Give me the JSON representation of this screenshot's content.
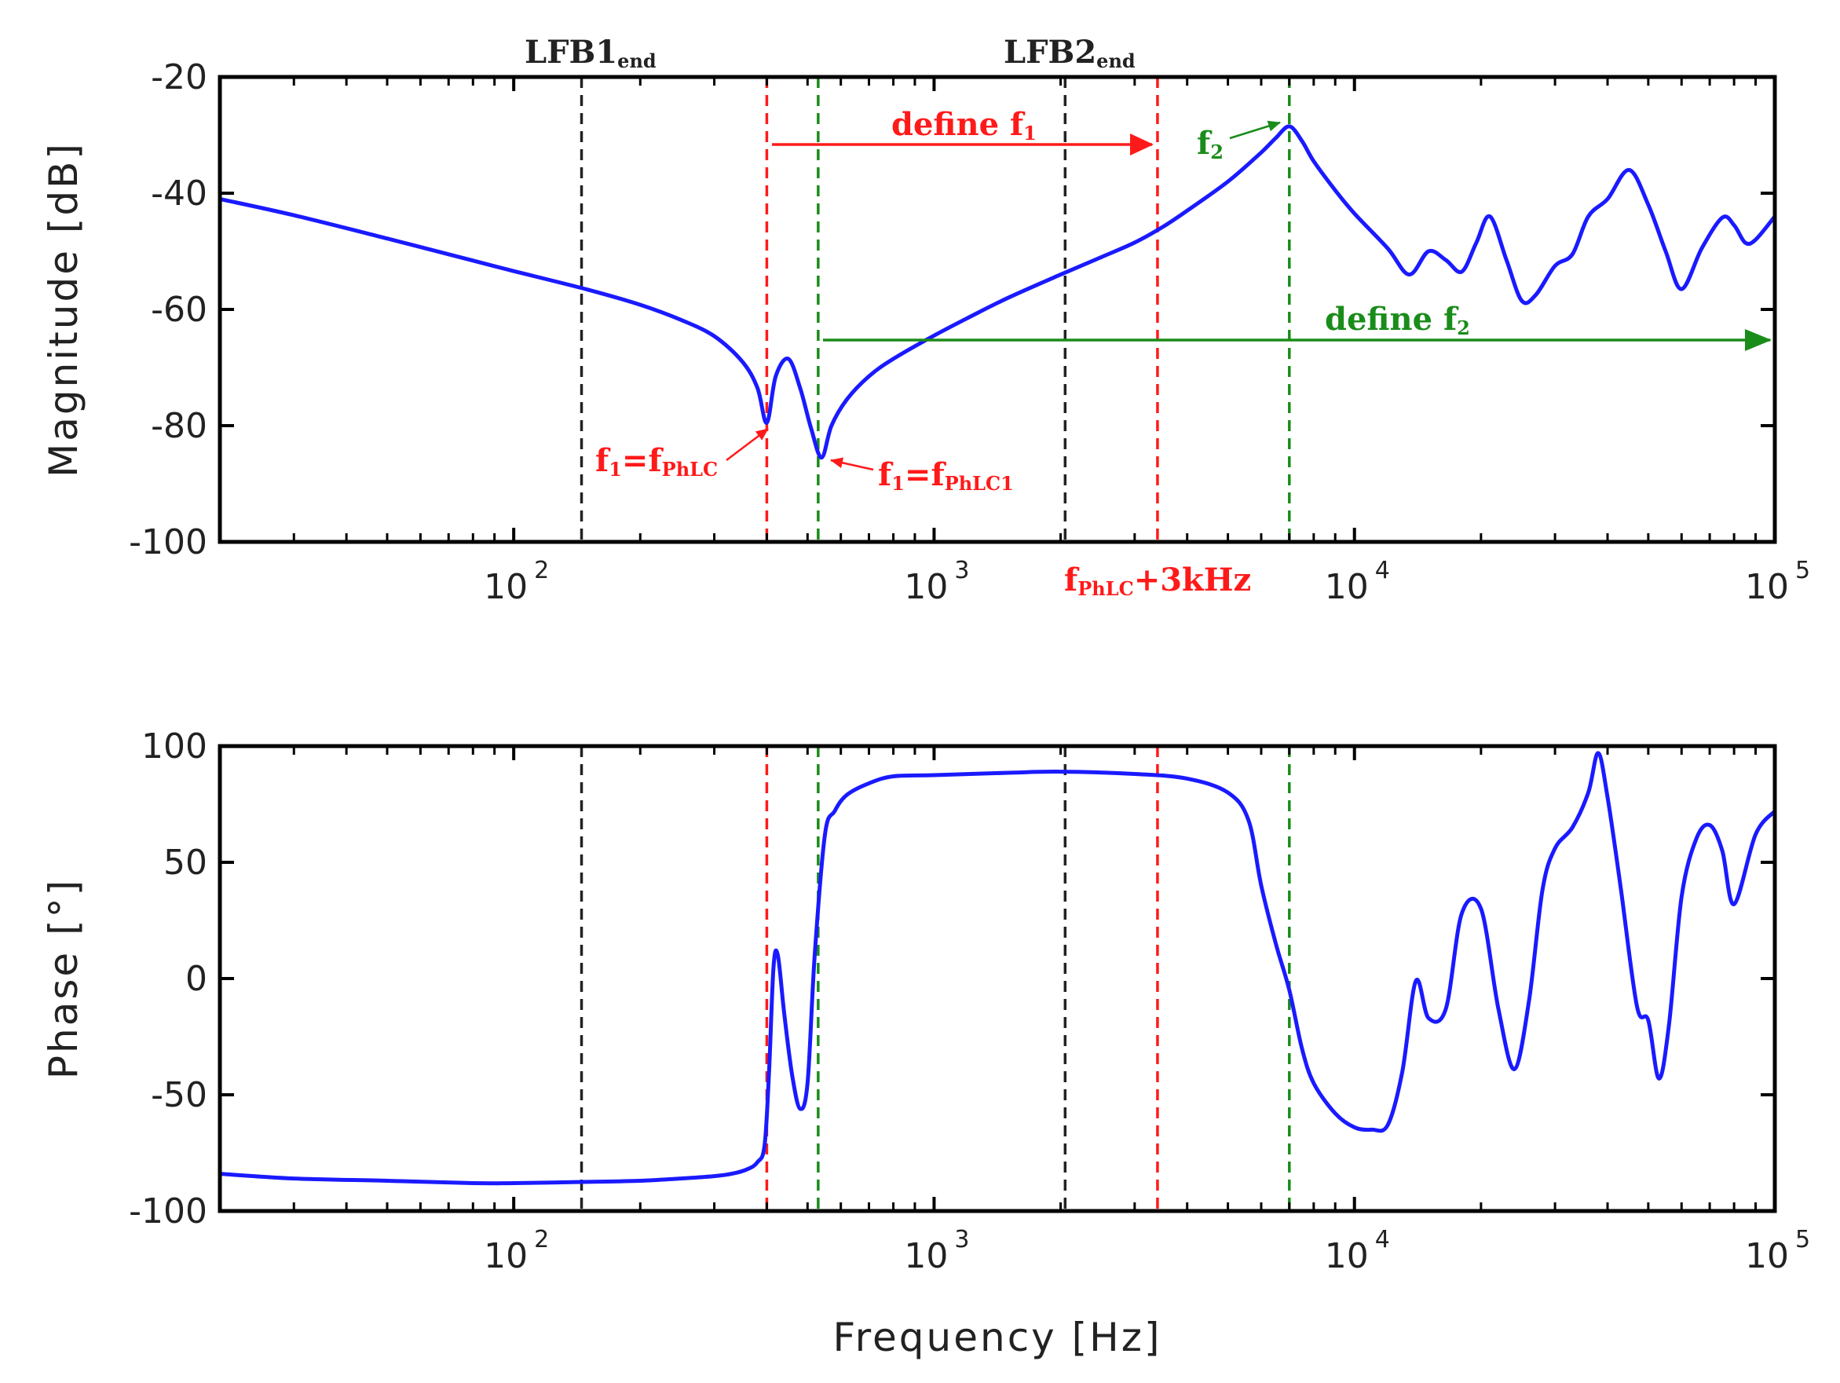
{
  "colors": {
    "series": "#1a1aff",
    "lfb": "#222222",
    "red": "#ff1a1a",
    "green": "#1a8c1a"
  },
  "chart_data": [
    {
      "type": "line",
      "title": "",
      "xlabel": "",
      "ylabel": "Magnitude [dB]",
      "xscale": "log",
      "xlim": [
        20,
        100000
      ],
      "ylim": [
        -100,
        -20
      ],
      "yticks": [
        "-20",
        "-40",
        "-60",
        "-80",
        "-100"
      ],
      "ytick_values": [
        -20,
        -40,
        -60,
        -80,
        -100
      ],
      "xtick_base": "10",
      "xtick_exponents": [
        "2",
        "3",
        "4",
        "5"
      ],
      "grid": false,
      "series": [
        {
          "name": "Magnitude",
          "x": [
            20,
            30,
            50,
            80,
            100,
            150,
            200,
            250,
            300,
            350,
            380,
            400,
            420,
            450,
            480,
            510,
            540,
            570,
            620,
            700,
            800,
            1000,
            1200,
            1500,
            2000,
            2500,
            3000,
            3500,
            4000,
            5000,
            6000,
            6500,
            7000,
            7500,
            8000,
            9000,
            10000,
            12000,
            13500,
            15000,
            16500,
            18000,
            19500,
            21000,
            23000,
            25000,
            27000,
            30000,
            33000,
            36000,
            40000,
            45000,
            50000,
            55000,
            60000,
            67000,
            75000,
            80000,
            85000,
            90000,
            100000
          ],
          "y": [
            -41,
            -43.8,
            -47.8,
            -51.6,
            -53.4,
            -56.6,
            -59.2,
            -61.8,
            -64.6,
            -69,
            -73.5,
            -79.5,
            -71.5,
            -68.5,
            -73.5,
            -80.5,
            -85.5,
            -80,
            -75.5,
            -71.5,
            -68.5,
            -64.5,
            -61.5,
            -58,
            -54,
            -51,
            -48.5,
            -45.8,
            -43,
            -38,
            -33,
            -30.5,
            -28.5,
            -31,
            -34.5,
            -39.5,
            -43.5,
            -49.5,
            -54,
            -50,
            -51.5,
            -53.5,
            -48.5,
            -44,
            -51.5,
            -58.5,
            -57.5,
            -52.5,
            -50.5,
            -44,
            -41,
            -36,
            -42,
            -50,
            -56.5,
            -49.5,
            -44.2,
            -45.5,
            -48.5,
            -48,
            -44
          ]
        }
      ],
      "annotations": [
        {
          "text": "LFB1",
          "sub": "end",
          "x": 145,
          "color": "lfb"
        },
        {
          "text": "LFB2",
          "sub": "end",
          "x": 2050,
          "color": "lfb"
        },
        {
          "text": "define f",
          "sub": "1",
          "color": "red"
        },
        {
          "text": "f",
          "sub": "2",
          "color": "green"
        },
        {
          "text": "define f",
          "sub": "2",
          "color": "green"
        },
        {
          "text": "f",
          "sub": "1",
          "mid": "=f",
          "sub2": "PhLC",
          "color": "red"
        },
        {
          "text": "f",
          "sub": "1",
          "mid": "=f",
          "sub2": "PhLC1",
          "color": "red"
        },
        {
          "text": "f",
          "sub": "PhLC",
          "tail": "+3kHz",
          "color": "red"
        }
      ],
      "vertical_lines": [
        {
          "x": 145,
          "color": "lfb",
          "label": "LFB1 end"
        },
        {
          "x": 400,
          "color": "red",
          "label": "f1 = fPhLC"
        },
        {
          "x": 530,
          "color": "green",
          "label": "f1 = fPhLC1"
        },
        {
          "x": 2050,
          "color": "lfb",
          "label": "LFB2 end"
        },
        {
          "x": 3400,
          "color": "red",
          "label": "fPhLC + 3kHz"
        },
        {
          "x": 7000,
          "color": "green",
          "label": "f2"
        }
      ]
    },
    {
      "type": "line",
      "title": "",
      "xlabel": "Frequency [Hz]",
      "ylabel": "Phase [°]",
      "xscale": "log",
      "xlim": [
        20,
        100000
      ],
      "ylim": [
        -100,
        100
      ],
      "yticks": [
        "100",
        "50",
        "0",
        "-50",
        "-100"
      ],
      "ytick_values": [
        100,
        50,
        0,
        -50,
        -100
      ],
      "xtick_base": "10",
      "xtick_exponents": [
        "2",
        "3",
        "4",
        "5"
      ],
      "grid": false,
      "series": [
        {
          "name": "Phase",
          "x": [
            20,
            30,
            50,
            80,
            100,
            145,
            200,
            250,
            300,
            330,
            360,
            380,
            395,
            405,
            415,
            425,
            440,
            460,
            480,
            500,
            520,
            550,
            580,
            620,
            700,
            800,
            1000,
            1500,
            2000,
            3000,
            4000,
            5000,
            5600,
            6000,
            6500,
            7000,
            7500,
            8000,
            9000,
            10000,
            11000,
            12000,
            13000,
            14000,
            15000,
            16500,
            18000,
            20000,
            22000,
            24000,
            26000,
            28000,
            30000,
            33000,
            36000,
            38000,
            40000,
            43000,
            47000,
            50000,
            53000,
            56000,
            60000,
            65000,
            70000,
            75000,
            80000,
            90000,
            100000
          ],
          "y": [
            -84,
            -86,
            -87,
            -88,
            -88,
            -87.5,
            -87,
            -86,
            -85,
            -84,
            -82,
            -79,
            -72,
            -40,
            5,
            10,
            -15,
            -42,
            -56,
            -45,
            10,
            62,
            72,
            79,
            84,
            87,
            87.5,
            88.5,
            89,
            88,
            86,
            80,
            68,
            40,
            15,
            -5,
            -30,
            -45,
            -58,
            -64,
            -65,
            -63,
            -40,
            -1,
            -17,
            -13,
            28,
            30,
            -13,
            -39,
            -10,
            38,
            56,
            65,
            80,
            97,
            78,
            39,
            -12,
            -18,
            -43,
            -20,
            35,
            60,
            66,
            55,
            32,
            62,
            72
          ]
        }
      ],
      "vertical_lines": [
        {
          "x": 145,
          "color": "lfb"
        },
        {
          "x": 400,
          "color": "red"
        },
        {
          "x": 530,
          "color": "green"
        },
        {
          "x": 2050,
          "color": "lfb"
        },
        {
          "x": 3400,
          "color": "red"
        },
        {
          "x": 7000,
          "color": "green"
        }
      ]
    }
  ]
}
